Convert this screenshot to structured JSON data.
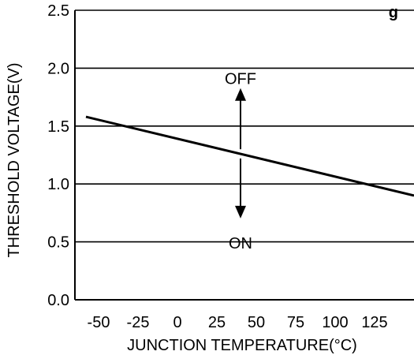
{
  "chart_data": {
    "type": "line",
    "title": "",
    "title_visible_fragment": "g",
    "xlabel": "JUNCTION TEMPERATURE(°C)",
    "ylabel": "THRESHOLD VOLTAGE(V)",
    "xlim": [
      -65,
      150
    ],
    "ylim": [
      0,
      2.5
    ],
    "x_ticks": [
      -50,
      -25,
      0,
      25,
      50,
      75,
      100,
      125
    ],
    "x_tick_labels": [
      "-50",
      "-25",
      "0",
      "25",
      "50",
      "75",
      "100",
      "125"
    ],
    "y_ticks": [
      0.0,
      0.5,
      1.0,
      1.5,
      2.0,
      2.5
    ],
    "y_tick_labels": [
      "0.0",
      "0.5",
      "1.0",
      "1.5",
      "2.0",
      "2.5"
    ],
    "grid": "horizontal",
    "series": [
      {
        "x": [
          -58,
          150
        ],
        "y": [
          1.58,
          0.9
        ]
      }
    ],
    "annotations": [
      {
        "text": "OFF",
        "x": 40,
        "y": 2.0,
        "direction": "up",
        "arrow_from": [
          40,
          1.3
        ],
        "arrow_to": [
          40,
          1.8
        ]
      },
      {
        "text": "ON",
        "x": 40,
        "y": 0.58,
        "direction": "down",
        "arrow_from": [
          40,
          1.22
        ],
        "arrow_to": [
          40,
          0.73
        ]
      }
    ]
  },
  "colors": {
    "line": "#000000",
    "grid": "#000000",
    "axis": "#000000",
    "background": "#ffffff"
  }
}
